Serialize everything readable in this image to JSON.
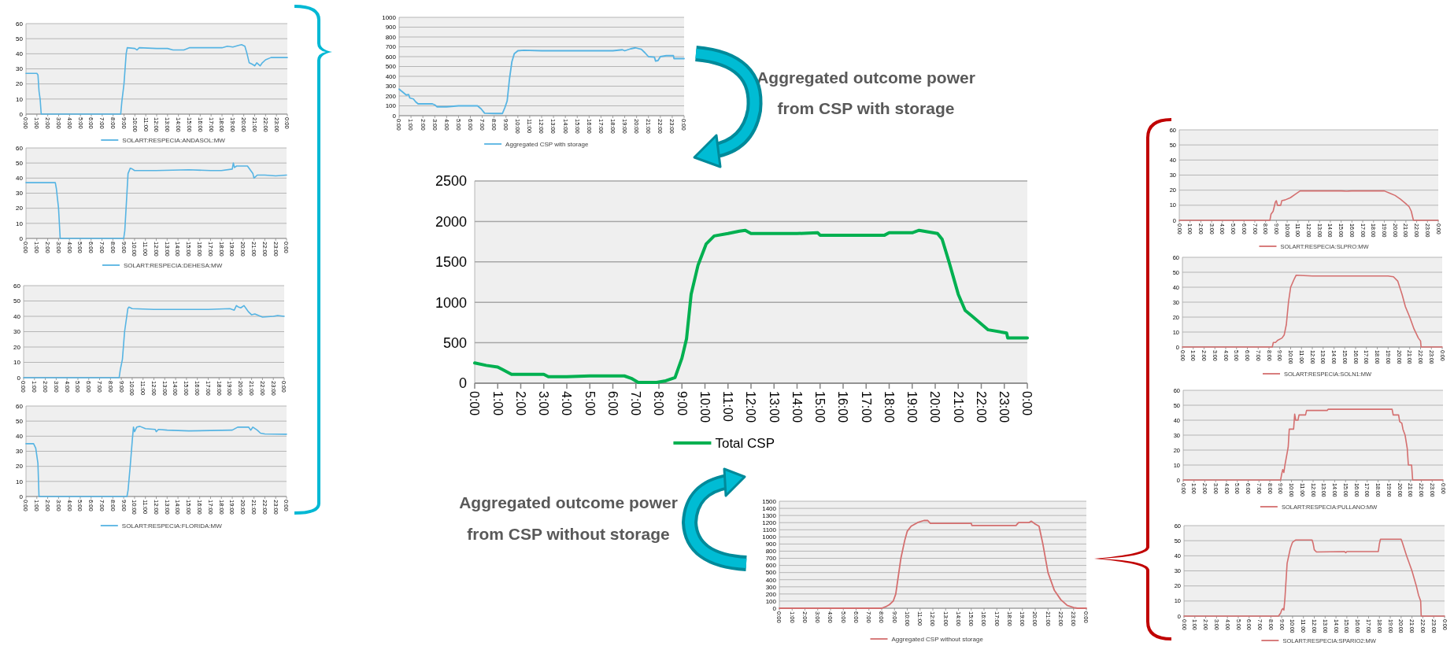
{
  "chart_data": [
    {
      "type": "line",
      "xlim": [
        0,
        24
      ],
      "xticks": [
        {
          "value": 0,
          "label": "0:00"
        },
        {
          "value": 1,
          "label": "1:00"
        },
        {
          "value": 2,
          "label": "2:00"
        },
        {
          "value": 3,
          "label": "3:00"
        },
        {
          "value": 4,
          "label": "4:00"
        },
        {
          "value": 5,
          "label": "5:00"
        },
        {
          "value": 6,
          "label": "6:00"
        },
        {
          "value": 7,
          "label": "7:00"
        },
        {
          "value": 8,
          "label": "8:00"
        },
        {
          "value": 9,
          "label": "9:00"
        },
        {
          "value": 10,
          "label": "10:00"
        },
        {
          "value": 11,
          "label": "11:00"
        },
        {
          "value": 12,
          "label": "12:00"
        },
        {
          "value": 13,
          "label": "13:00"
        },
        {
          "value": 14,
          "label": "14:00"
        },
        {
          "value": 15,
          "label": "15:00"
        },
        {
          "value": 16,
          "label": "16:00"
        },
        {
          "value": 17,
          "label": "17:00"
        },
        {
          "value": 18,
          "label": "18:00"
        },
        {
          "value": 19,
          "label": "19:00"
        },
        {
          "value": 20,
          "label": "20:00"
        },
        {
          "value": 21,
          "label": "21:00"
        },
        {
          "value": 22,
          "label": "22:00"
        },
        {
          "value": 23,
          "label": "23:00"
        },
        {
          "value": 24,
          "label": "0:00"
        }
      ],
      "ylim": [
        0,
        60
      ],
      "yticks": [
        0,
        10,
        20,
        30,
        40,
        50,
        60
      ],
      "grid": "y",
      "legend": "bottom",
      "series": [
        {
          "name": "SOLART:RESPECIA:ANDASOL:MW",
          "color": "#56b4e3",
          "x": [
            0,
            1,
            1.1,
            1.2,
            1.3,
            1.4,
            8.7,
            8.8,
            9.0,
            9.2,
            9.3,
            10,
            10.2,
            10.4,
            12,
            13,
            13.5,
            14.5,
            15,
            18,
            18.5,
            19,
            19.5,
            19.8,
            20.1,
            20.3,
            20.5,
            20.8,
            21,
            21.2,
            21.5,
            21.7,
            22,
            22.5,
            24
          ],
          "values": [
            27,
            27,
            26,
            15,
            10,
            0,
            0,
            8,
            20,
            40,
            44,
            43.5,
            42.5,
            44,
            43.5,
            43.5,
            42.5,
            42.5,
            44,
            44,
            45,
            44.5,
            45.5,
            46,
            45,
            40,
            34,
            33,
            32,
            34,
            32,
            34,
            36,
            37.5,
            37.5
          ]
        }
      ]
    },
    {
      "type": "line",
      "xlim": [
        0,
        24
      ],
      "xticks": [
        {
          "value": 0,
          "label": "0:00"
        },
        {
          "value": 1,
          "label": "1:00"
        },
        {
          "value": 2,
          "label": "2:00"
        },
        {
          "value": 3,
          "label": "3:00"
        },
        {
          "value": 4,
          "label": "4:00"
        },
        {
          "value": 5,
          "label": "5:00"
        },
        {
          "value": 6,
          "label": "6:00"
        },
        {
          "value": 7,
          "label": "7:00"
        },
        {
          "value": 8,
          "label": "8:00"
        },
        {
          "value": 9,
          "label": "9:00"
        },
        {
          "value": 10,
          "label": "10:00"
        },
        {
          "value": 11,
          "label": "11:00"
        },
        {
          "value": 12,
          "label": "12:00"
        },
        {
          "value": 13,
          "label": "13:00"
        },
        {
          "value": 14,
          "label": "14:00"
        },
        {
          "value": 15,
          "label": "15:00"
        },
        {
          "value": 16,
          "label": "16:00"
        },
        {
          "value": 17,
          "label": "17:00"
        },
        {
          "value": 18,
          "label": "18:00"
        },
        {
          "value": 19,
          "label": "19:00"
        },
        {
          "value": 20,
          "label": "20:00"
        },
        {
          "value": 21,
          "label": "21:00"
        },
        {
          "value": 22,
          "label": "22:00"
        },
        {
          "value": 23,
          "label": "23:00"
        },
        {
          "value": 24,
          "label": "0:00"
        }
      ],
      "ylim": [
        0,
        60
      ],
      "yticks": [
        0,
        10,
        20,
        30,
        40,
        50,
        60
      ],
      "grid": "y",
      "legend": "bottom",
      "series": [
        {
          "name": "SOLART:RESPECIA:DEHESA:MW",
          "color": "#56b4e3",
          "x": [
            0,
            2.7,
            2.8,
            3.0,
            3.15,
            9.0,
            9.1,
            9.3,
            9.4,
            9.6,
            9.8,
            10,
            12,
            15,
            17,
            18,
            19,
            19.1,
            19.2,
            19.4,
            20.4,
            20.7,
            20.9,
            21.0,
            21.3,
            22,
            23,
            24
          ],
          "values": [
            37,
            37,
            33,
            20,
            0,
            0,
            5,
            30,
            43,
            46.5,
            46,
            45,
            45,
            45.5,
            45,
            45,
            46,
            50,
            47,
            48,
            48,
            45,
            43,
            40,
            42,
            42,
            41.5,
            42
          ]
        }
      ]
    },
    {
      "type": "line",
      "xlim": [
        0,
        24
      ],
      "xticks": [
        {
          "value": 0,
          "label": "0:00"
        },
        {
          "value": 1,
          "label": "1:00"
        },
        {
          "value": 2,
          "label": "2:00"
        },
        {
          "value": 3,
          "label": "3:00"
        },
        {
          "value": 4,
          "label": "4:00"
        },
        {
          "value": 5,
          "label": "5:00"
        },
        {
          "value": 6,
          "label": "6:00"
        },
        {
          "value": 7,
          "label": "7:00"
        },
        {
          "value": 8,
          "label": "8:00"
        },
        {
          "value": 9,
          "label": "9:00"
        },
        {
          "value": 10,
          "label": "10:00"
        },
        {
          "value": 11,
          "label": "11:00"
        },
        {
          "value": 12,
          "label": "12:00"
        },
        {
          "value": 13,
          "label": "13:00"
        },
        {
          "value": 14,
          "label": "14:00"
        },
        {
          "value": 15,
          "label": "15:00"
        },
        {
          "value": 16,
          "label": "16:00"
        },
        {
          "value": 17,
          "label": "17:00"
        },
        {
          "value": 18,
          "label": "18:00"
        },
        {
          "value": 19,
          "label": "19:00"
        },
        {
          "value": 20,
          "label": "20:00"
        },
        {
          "value": 21,
          "label": "21:00"
        },
        {
          "value": 22,
          "label": "22:00"
        },
        {
          "value": 23,
          "label": "23:00"
        },
        {
          "value": 24,
          "label": "0:00"
        }
      ],
      "ylim": [
        0,
        60
      ],
      "yticks": [
        0,
        10,
        20,
        30,
        40,
        50,
        60
      ],
      "grid": "y",
      "series": [
        {
          "color": "#56b4e3",
          "x": [
            0,
            8.8,
            8.9,
            9.1,
            9.3,
            9.4,
            9.6,
            9.7,
            10,
            12,
            15,
            17,
            19,
            19.4,
            19.6,
            19.8,
            20,
            20.3,
            20.5,
            20.7,
            21,
            21.3,
            22,
            23,
            23.4,
            24
          ],
          "values": [
            0,
            0,
            5,
            12,
            30,
            35,
            45,
            46,
            45,
            44.5,
            44.5,
            44.5,
            45,
            44,
            47,
            46,
            45.5,
            47,
            45,
            43,
            41,
            41.5,
            39.5,
            40,
            40.5,
            40
          ]
        }
      ]
    },
    {
      "type": "line",
      "xlim": [
        0,
        24
      ],
      "xticks": [
        {
          "value": 0,
          "label": "0:00"
        },
        {
          "value": 1,
          "label": "1:00"
        },
        {
          "value": 2,
          "label": "2:00"
        },
        {
          "value": 3,
          "label": "3:00"
        },
        {
          "value": 4,
          "label": "4:00"
        },
        {
          "value": 5,
          "label": "5:00"
        },
        {
          "value": 6,
          "label": "6:00"
        },
        {
          "value": 7,
          "label": "7:00"
        },
        {
          "value": 8,
          "label": "8:00"
        },
        {
          "value": 9,
          "label": "9:00"
        },
        {
          "value": 10,
          "label": "10:00"
        },
        {
          "value": 11,
          "label": "11:00"
        },
        {
          "value": 12,
          "label": "12:00"
        },
        {
          "value": 13,
          "label": "13:00"
        },
        {
          "value": 14,
          "label": "14:00"
        },
        {
          "value": 15,
          "label": "15:00"
        },
        {
          "value": 16,
          "label": "16:00"
        },
        {
          "value": 17,
          "label": "17:00"
        },
        {
          "value": 18,
          "label": "18:00"
        },
        {
          "value": 19,
          "label": "19:00"
        },
        {
          "value": 20,
          "label": "20:00"
        },
        {
          "value": 21,
          "label": "21:00"
        },
        {
          "value": 22,
          "label": "22:00"
        },
        {
          "value": 23,
          "label": "23:00"
        },
        {
          "value": 24,
          "label": "0:00"
        }
      ],
      "ylim": [
        0,
        60
      ],
      "yticks": [
        0,
        10,
        20,
        30,
        40,
        50,
        60
      ],
      "grid": "y",
      "legend": "bottom",
      "series": [
        {
          "name": "SOLART:RESPECIA:FLORIDA:MW",
          "color": "#56b4e3",
          "x": [
            0,
            0.7,
            0.9,
            1.1,
            1.2,
            9.3,
            9.4,
            9.6,
            9.8,
            9.9,
            10.0,
            10.2,
            10.5,
            11,
            11.9,
            12,
            12.2,
            13,
            15,
            19,
            19.5,
            20,
            20.5,
            20.7,
            20.9,
            21.3,
            21.6,
            22,
            24
          ],
          "values": [
            35,
            35,
            32,
            22,
            0,
            0,
            4,
            20,
            38,
            46,
            43,
            46,
            46.5,
            45,
            44.5,
            43,
            44.5,
            44,
            43.5,
            44,
            46,
            46,
            46,
            44,
            46,
            44,
            42,
            41.5,
            41.3
          ]
        }
      ]
    },
    {
      "type": "line",
      "xlim": [
        0,
        24
      ],
      "xticks": [
        {
          "value": 0,
          "label": "0:00"
        },
        {
          "value": 1,
          "label": "1:00"
        },
        {
          "value": 2,
          "label": "2:00"
        },
        {
          "value": 3,
          "label": "3:00"
        },
        {
          "value": 4,
          "label": "4:00"
        },
        {
          "value": 5,
          "label": "5:00"
        },
        {
          "value": 6,
          "label": "6:00"
        },
        {
          "value": 7,
          "label": "7:00"
        },
        {
          "value": 8,
          "label": "8:00"
        },
        {
          "value": 9,
          "label": "9:00"
        },
        {
          "value": 10,
          "label": "10:00"
        },
        {
          "value": 11,
          "label": "11:00"
        },
        {
          "value": 12,
          "label": "12:00"
        },
        {
          "value": 13,
          "label": "13:00"
        },
        {
          "value": 14,
          "label": "14:00"
        },
        {
          "value": 15,
          "label": "15:00"
        },
        {
          "value": 16,
          "label": "16:00"
        },
        {
          "value": 17,
          "label": "17:00"
        },
        {
          "value": 18,
          "label": "18:00"
        },
        {
          "value": 19,
          "label": "19:00"
        },
        {
          "value": 20,
          "label": "20:00"
        },
        {
          "value": 21,
          "label": "21:00"
        },
        {
          "value": 22,
          "label": "22:00"
        },
        {
          "value": 23,
          "label": "23:00"
        },
        {
          "value": 24,
          "label": "0:00"
        }
      ],
      "ylim": [
        0,
        1000
      ],
      "yticks": [
        0,
        100,
        200,
        300,
        400,
        500,
        600,
        700,
        800,
        900,
        1000
      ],
      "grid": "y",
      "legend": "bottom",
      "annotations": [
        "Aggregated outcome power",
        "from CSP with storage"
      ],
      "series": [
        {
          "name": "Aggregated CSP with storage",
          "color": "#56b4e3",
          "x": [
            0,
            0.3,
            0.6,
            0.8,
            0.9,
            1.2,
            1.4,
            1.6,
            2.8,
            3.0,
            3.2,
            4.0,
            5,
            6.6,
            6.9,
            7.2,
            8,
            8.7,
            8.9,
            9.1,
            9.3,
            9.5,
            9.7,
            10,
            10.5,
            12,
            15,
            18,
            18.8,
            19,
            19.5,
            19.9,
            20.4,
            20.7,
            21,
            21.5,
            21.6,
            21.8,
            22,
            22.5,
            23.1,
            23.15,
            24
          ],
          "values": [
            270,
            240,
            210,
            215,
            180,
            170,
            140,
            120,
            120,
            110,
            90,
            90,
            100,
            100,
            70,
            25,
            22,
            22,
            80,
            150,
            380,
            550,
            630,
            660,
            665,
            660,
            660,
            660,
            670,
            660,
            680,
            690,
            675,
            640,
            600,
            595,
            555,
            560,
            600,
            610,
            610,
            580,
            580
          ]
        }
      ]
    },
    {
      "type": "line",
      "xlim": [
        0,
        24
      ],
      "xticks": [
        {
          "value": 0,
          "label": "0:00"
        },
        {
          "value": 1,
          "label": "1:00"
        },
        {
          "value": 2,
          "label": "2:00"
        },
        {
          "value": 3,
          "label": "3:00"
        },
        {
          "value": 4,
          "label": "4:00"
        },
        {
          "value": 5,
          "label": "5:00"
        },
        {
          "value": 6,
          "label": "6:00"
        },
        {
          "value": 7,
          "label": "7:00"
        },
        {
          "value": 8,
          "label": "8:00"
        },
        {
          "value": 9,
          "label": "9:00"
        },
        {
          "value": 10,
          "label": "10:00"
        },
        {
          "value": 11,
          "label": "11:00"
        },
        {
          "value": 12,
          "label": "12:00"
        },
        {
          "value": 13,
          "label": "13:00"
        },
        {
          "value": 14,
          "label": "14:00"
        },
        {
          "value": 15,
          "label": "15:00"
        },
        {
          "value": 16,
          "label": "16:00"
        },
        {
          "value": 17,
          "label": "17:00"
        },
        {
          "value": 18,
          "label": "18:00"
        },
        {
          "value": 19,
          "label": "19:00"
        },
        {
          "value": 20,
          "label": "20:00"
        },
        {
          "value": 21,
          "label": "21:00"
        },
        {
          "value": 22,
          "label": "22:00"
        },
        {
          "value": 23,
          "label": "23:00"
        },
        {
          "value": 24,
          "label": "0:00"
        }
      ],
      "ylim": [
        0,
        2500
      ],
      "yticks": [
        0,
        500,
        1000,
        1500,
        2000,
        2500
      ],
      "grid": "y",
      "legend": "bottom",
      "series": [
        {
          "name": "Total CSP",
          "color": "#00b050",
          "x": [
            0,
            0.5,
            1,
            1.2,
            1.6,
            3,
            3.2,
            4,
            5,
            6.5,
            6.8,
            7.1,
            7.9,
            8.3,
            8.7,
            9.0,
            9.2,
            9.4,
            9.7,
            10.05,
            10.4,
            11,
            11.5,
            11.75,
            12,
            13,
            14,
            14.9,
            15,
            16,
            17,
            17.8,
            18,
            19,
            19.3,
            19.7,
            20.1,
            20.3,
            20.6,
            21,
            21.3,
            21.6,
            22.3,
            23.1,
            23.15,
            24
          ],
          "values": [
            250,
            220,
            200,
            170,
            110,
            110,
            80,
            80,
            90,
            90,
            60,
            10,
            10,
            30,
            70,
            310,
            550,
            1100,
            1460,
            1720,
            1820,
            1850,
            1880,
            1890,
            1850,
            1850,
            1850,
            1860,
            1830,
            1830,
            1830,
            1830,
            1860,
            1860,
            1890,
            1870,
            1850,
            1780,
            1500,
            1100,
            900,
            830,
            660,
            620,
            560,
            560
          ]
        }
      ]
    },
    {
      "type": "line",
      "xlim": [
        0,
        24
      ],
      "xticks": [
        {
          "value": 0,
          "label": "0:00"
        },
        {
          "value": 1,
          "label": "1:00"
        },
        {
          "value": 2,
          "label": "2:00"
        },
        {
          "value": 3,
          "label": "3:00"
        },
        {
          "value": 4,
          "label": "4:00"
        },
        {
          "value": 5,
          "label": "5:00"
        },
        {
          "value": 6,
          "label": "6:00"
        },
        {
          "value": 7,
          "label": "7:00"
        },
        {
          "value": 8,
          "label": "8:00"
        },
        {
          "value": 9,
          "label": "9:00"
        },
        {
          "value": 10,
          "label": "10:00"
        },
        {
          "value": 11,
          "label": "11:00"
        },
        {
          "value": 12,
          "label": "12:00"
        },
        {
          "value": 13,
          "label": "13:00"
        },
        {
          "value": 14,
          "label": "14:00"
        },
        {
          "value": 15,
          "label": "15:00"
        },
        {
          "value": 16,
          "label": "16:00"
        },
        {
          "value": 17,
          "label": "17:00"
        },
        {
          "value": 18,
          "label": "18:00"
        },
        {
          "value": 19,
          "label": "19:00"
        },
        {
          "value": 20,
          "label": "20:00"
        },
        {
          "value": 21,
          "label": "21:00"
        },
        {
          "value": 22,
          "label": "22:00"
        },
        {
          "value": 23,
          "label": "23:00"
        },
        {
          "value": 24,
          "label": "0:00"
        }
      ],
      "ylim": [
        0,
        1500
      ],
      "yticks": [
        0,
        100,
        200,
        300,
        400,
        500,
        600,
        700,
        800,
        900,
        1000,
        1100,
        1200,
        1300,
        1400,
        1500
      ],
      "grid": "y",
      "legend": "bottom",
      "annotations": [
        "Aggregated outcome power",
        "from CSP without storage"
      ],
      "series": [
        {
          "name": "Aggregated CSP without storage",
          "color": "#d46f6f",
          "x": [
            0,
            8,
            8.3,
            8.6,
            8.9,
            9.1,
            9.3,
            9.5,
            9.8,
            10,
            10.3,
            10.8,
            11.3,
            11.6,
            11.8,
            12,
            15,
            15.05,
            17,
            18.5,
            18.7,
            19.5,
            19.7,
            20,
            20.3,
            20.6,
            21,
            21.5,
            22,
            22.5,
            23,
            23.3,
            24
          ],
          "values": [
            0,
            0,
            20,
            50,
            100,
            200,
            450,
            700,
            950,
            1080,
            1150,
            1200,
            1230,
            1230,
            1190,
            1190,
            1190,
            1160,
            1160,
            1160,
            1200,
            1200,
            1220,
            1180,
            1150,
            900,
            500,
            250,
            120,
            40,
            10,
            0,
            0
          ]
        }
      ]
    },
    {
      "type": "line",
      "xlim": [
        0,
        24
      ],
      "xticks": [
        {
          "value": 0,
          "label": "0:00"
        },
        {
          "value": 1,
          "label": "1:00"
        },
        {
          "value": 2,
          "label": "2:00"
        },
        {
          "value": 3,
          "label": "3:00"
        },
        {
          "value": 4,
          "label": "4:00"
        },
        {
          "value": 5,
          "label": "5:00"
        },
        {
          "value": 6,
          "label": "6:00"
        },
        {
          "value": 7,
          "label": "7:00"
        },
        {
          "value": 8,
          "label": "8:00"
        },
        {
          "value": 9,
          "label": "9:00"
        },
        {
          "value": 10,
          "label": "10:00"
        },
        {
          "value": 11,
          "label": "11:00"
        },
        {
          "value": 12,
          "label": "12:00"
        },
        {
          "value": 13,
          "label": "13:00"
        },
        {
          "value": 14,
          "label": "14:00"
        },
        {
          "value": 15,
          "label": "15:00"
        },
        {
          "value": 16,
          "label": "16:00"
        },
        {
          "value": 17,
          "label": "17:00"
        },
        {
          "value": 18,
          "label": "18:00"
        },
        {
          "value": 19,
          "label": "19:00"
        },
        {
          "value": 20,
          "label": "20:00"
        },
        {
          "value": 21,
          "label": "21:00"
        },
        {
          "value": 22,
          "label": "22:00"
        },
        {
          "value": 23,
          "label": "23:00"
        },
        {
          "value": 24,
          "label": "0:00"
        }
      ],
      "ylim": [
        0,
        60
      ],
      "yticks": [
        0,
        10,
        20,
        30,
        40,
        50,
        60
      ],
      "grid": "y",
      "legend": "bottom",
      "series": [
        {
          "name": "SOLART:RESPECIA:SLPRO:MW",
          "color": "#d46f6f",
          "x": [
            0,
            8.4,
            8.5,
            8.7,
            8.9,
            9.0,
            9.1,
            9.4,
            9.5,
            9.8,
            10.3,
            10.7,
            11.2,
            13,
            15,
            15.5,
            16,
            19,
            19.5,
            20,
            20.5,
            21,
            21.3,
            21.5,
            21.7,
            24
          ],
          "values": [
            0,
            0,
            4,
            6,
            12,
            13,
            10,
            10,
            13,
            13.5,
            15,
            17,
            19.5,
            19.5,
            19.5,
            19.3,
            19.5,
            19.5,
            18,
            16.5,
            14,
            11,
            9,
            6,
            0,
            0
          ]
        }
      ]
    },
    {
      "type": "line",
      "xlim": [
        0,
        24
      ],
      "xticks": [
        {
          "value": 0,
          "label": "0:00"
        },
        {
          "value": 1,
          "label": "1:00"
        },
        {
          "value": 2,
          "label": "2:00"
        },
        {
          "value": 3,
          "label": "3:00"
        },
        {
          "value": 4,
          "label": "4:00"
        },
        {
          "value": 5,
          "label": "5:00"
        },
        {
          "value": 6,
          "label": "6:00"
        },
        {
          "value": 7,
          "label": "7:00"
        },
        {
          "value": 8,
          "label": "8:00"
        },
        {
          "value": 9,
          "label": "9:00"
        },
        {
          "value": 10,
          "label": "10:00"
        },
        {
          "value": 11,
          "label": "11:00"
        },
        {
          "value": 12,
          "label": "12:00"
        },
        {
          "value": 13,
          "label": "13:00"
        },
        {
          "value": 14,
          "label": "14:00"
        },
        {
          "value": 15,
          "label": "15:00"
        },
        {
          "value": 16,
          "label": "16:00"
        },
        {
          "value": 17,
          "label": "17:00"
        },
        {
          "value": 18,
          "label": "18:00"
        },
        {
          "value": 19,
          "label": "19:00"
        },
        {
          "value": 20,
          "label": "20:00"
        },
        {
          "value": 21,
          "label": "21:00"
        },
        {
          "value": 22,
          "label": "22:00"
        },
        {
          "value": 23,
          "label": "23:00"
        },
        {
          "value": 24,
          "label": "0:00"
        }
      ],
      "ylim": [
        0,
        60
      ],
      "yticks": [
        0,
        10,
        20,
        30,
        40,
        50,
        60
      ],
      "grid": "y",
      "legend": "bottom",
      "series": [
        {
          "name": "SOLART:RESPECIA:SOLN1:MW",
          "color": "#d46f6f",
          "x": [
            0,
            8.3,
            8.4,
            8.6,
            8.8,
            9.2,
            9.4,
            9.6,
            9.8,
            10,
            10.3,
            10.5,
            12,
            15,
            19,
            19.5,
            19.9,
            20.3,
            20.6,
            21,
            21.4,
            21.8,
            22,
            22.05,
            24
          ],
          "values": [
            0,
            0,
            3,
            3,
            4.5,
            6,
            8,
            15,
            30,
            40,
            45,
            48,
            47.5,
            47.5,
            47.5,
            47,
            44,
            35,
            27,
            20,
            12,
            6,
            4,
            0,
            0
          ]
        }
      ]
    },
    {
      "type": "line",
      "xlim": [
        0,
        24
      ],
      "xticks": [
        {
          "value": 0,
          "label": "0:00"
        },
        {
          "value": 1,
          "label": "1:00"
        },
        {
          "value": 2,
          "label": "2:00"
        },
        {
          "value": 3,
          "label": "3:00"
        },
        {
          "value": 4,
          "label": "4:00"
        },
        {
          "value": 5,
          "label": "5:00"
        },
        {
          "value": 6,
          "label": "6:00"
        },
        {
          "value": 7,
          "label": "7:00"
        },
        {
          "value": 8,
          "label": "8:00"
        },
        {
          "value": 9,
          "label": "9:00"
        },
        {
          "value": 10,
          "label": "10:00"
        },
        {
          "value": 11,
          "label": "11:00"
        },
        {
          "value": 12,
          "label": "12:00"
        },
        {
          "value": 13,
          "label": "13:00"
        },
        {
          "value": 14,
          "label": "14:00"
        },
        {
          "value": 15,
          "label": "15:00"
        },
        {
          "value": 16,
          "label": "16:00"
        },
        {
          "value": 17,
          "label": "17:00"
        },
        {
          "value": 18,
          "label": "18:00"
        },
        {
          "value": 19,
          "label": "19:00"
        },
        {
          "value": 20,
          "label": "20:00"
        },
        {
          "value": 21,
          "label": "21:00"
        },
        {
          "value": 22,
          "label": "22:00"
        },
        {
          "value": 23,
          "label": "23:00"
        },
        {
          "value": 24,
          "label": "0:00"
        }
      ],
      "ylim": [
        0,
        60
      ],
      "yticks": [
        0,
        10,
        20,
        30,
        40,
        50,
        60
      ],
      "grid": "y",
      "legend": "bottom",
      "series": [
        {
          "name": "SOLART:RESPECIA:PULLANO:MW",
          "color": "#d46f6f",
          "x": [
            0,
            9.0,
            9.1,
            9.2,
            9.3,
            9.4,
            9.6,
            9.7,
            9.8,
            10.2,
            10.3,
            10.4,
            10.6,
            10.7,
            11.3,
            11.4,
            13.3,
            13.4,
            19.3,
            19.4,
            19.9,
            20.0,
            20.2,
            20.3,
            20.5,
            20.7,
            20.8,
            21.1,
            21.2,
            24
          ],
          "values": [
            0,
            0,
            4,
            7,
            5,
            10,
            18,
            22,
            34,
            34,
            44,
            40,
            40,
            43.5,
            43.5,
            46.5,
            46.5,
            47.3,
            47.3,
            43.5,
            43.5,
            39,
            38,
            34,
            30,
            21,
            10,
            10,
            0,
            0
          ]
        }
      ]
    },
    {
      "type": "line",
      "xlim": [
        0,
        24
      ],
      "xticks": [
        {
          "value": 0,
          "label": "0:00"
        },
        {
          "value": 1,
          "label": "1:00"
        },
        {
          "value": 2,
          "label": "2:00"
        },
        {
          "value": 3,
          "label": "3:00"
        },
        {
          "value": 4,
          "label": "4:00"
        },
        {
          "value": 5,
          "label": "5:00"
        },
        {
          "value": 6,
          "label": "6:00"
        },
        {
          "value": 7,
          "label": "7:00"
        },
        {
          "value": 8,
          "label": "8:00"
        },
        {
          "value": 9,
          "label": "9:00"
        },
        {
          "value": 10,
          "label": "10:00"
        },
        {
          "value": 11,
          "label": "11:00"
        },
        {
          "value": 12,
          "label": "12:00"
        },
        {
          "value": 13,
          "label": "13:00"
        },
        {
          "value": 14,
          "label": "14:00"
        },
        {
          "value": 15,
          "label": "15:00"
        },
        {
          "value": 16,
          "label": "16:00"
        },
        {
          "value": 17,
          "label": "17:00"
        },
        {
          "value": 18,
          "label": "18:00"
        },
        {
          "value": 19,
          "label": "19:00"
        },
        {
          "value": 20,
          "label": "20:00"
        },
        {
          "value": 21,
          "label": "21:00"
        },
        {
          "value": 22,
          "label": "22:00"
        },
        {
          "value": 23,
          "label": "23:00"
        },
        {
          "value": 24,
          "label": "0:00"
        }
      ],
      "ylim": [
        0,
        60
      ],
      "yticks": [
        0,
        10,
        20,
        30,
        40,
        50,
        60
      ],
      "grid": "y",
      "legend": "bottom",
      "series": [
        {
          "name": "SOLART:RESPECIA:SPARIO2:MW",
          "color": "#d46f6f",
          "x": [
            0,
            8.7,
            8.9,
            9.0,
            9.1,
            9.2,
            9.3,
            9.5,
            9.8,
            10,
            10.3,
            11.8,
            11.9,
            12,
            12.2,
            14.8,
            14.9,
            15,
            17.9,
            18,
            18.1,
            19,
            20,
            20.1,
            20.5,
            21,
            21.4,
            21.6,
            21.8,
            21.85,
            24
          ],
          "values": [
            0,
            0,
            2,
            4,
            5,
            4,
            12,
            35,
            45,
            49,
            50.5,
            50.5,
            48,
            44,
            42.5,
            42.8,
            42,
            42.8,
            42.8,
            48,
            51,
            51,
            51,
            49,
            40,
            30,
            20,
            14,
            10,
            0,
            0
          ]
        }
      ]
    }
  ]
}
